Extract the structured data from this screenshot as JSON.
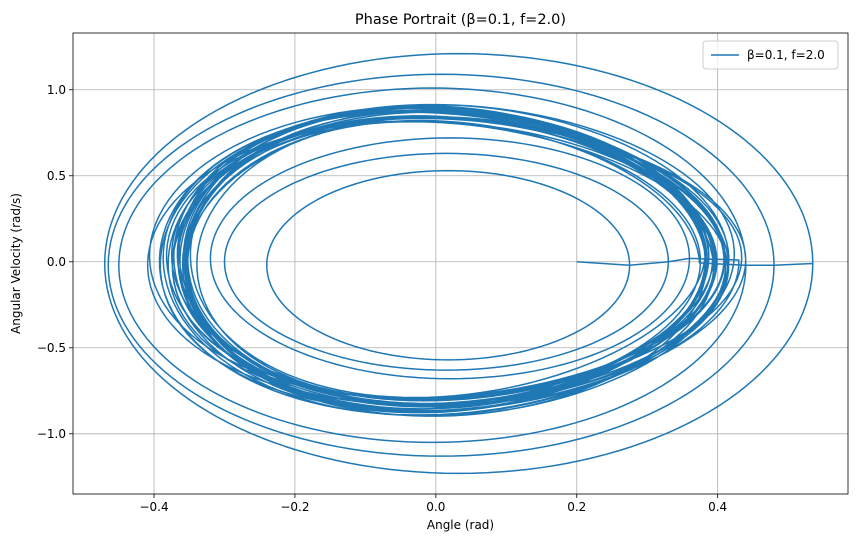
{
  "chart_data": {
    "type": "line",
    "title": "Phase Portrait (β=0.1, f=2.0)",
    "xlabel": "Angle (rad)",
    "ylabel": "Angular Velocity (rad/s)",
    "xlim": [
      -0.515,
      0.585
    ],
    "ylim": [
      -1.35,
      1.33
    ],
    "xticks": [
      -0.4,
      -0.2,
      0.0,
      0.2,
      0.4
    ],
    "xtick_labels": [
      "−0.4",
      "−0.2",
      "0.0",
      "0.2",
      "0.4"
    ],
    "yticks": [
      -1.0,
      -0.5,
      0.0,
      0.5,
      1.0
    ],
    "ytick_labels": [
      "−1.0",
      "−0.5",
      "0.0",
      "0.5",
      "1.0"
    ],
    "grid": true,
    "legend_position": "top-right",
    "color": "#1f77b4",
    "series": [
      {
        "name": "β=0.1, f=2.0",
        "start": [
          0.2,
          0.0
        ],
        "initial_loops": [
          {
            "center": [
              0.0,
              -0.03
            ],
            "x_extent": [
              -0.24,
              0.275
            ],
            "y_extent": [
              -0.57,
              0.53
            ]
          },
          {
            "center": [
              0.02,
              -0.02
            ],
            "x_extent": [
              -0.3,
              0.33
            ],
            "y_extent": [
              -0.63,
              0.63
            ]
          },
          {
            "center": [
              0.02,
              -0.01
            ],
            "x_extent": [
              -0.32,
              0.36
            ],
            "y_extent": [
              -0.68,
              0.72
            ]
          }
        ],
        "attractor": {
          "center": [
            0.015,
            0.04
          ],
          "x_amplitude": 0.385,
          "y_amplitude": 0.85
        },
        "outer_loops": [
          {
            "center": [
              0.035,
              -0.01
            ],
            "x_extent": [
              -0.45,
              0.44
            ],
            "y_extent": [
              -1.05,
              1.01
            ]
          },
          {
            "center": [
              0.05,
              -0.01
            ],
            "x_extent": [
              -0.465,
              0.48
            ],
            "y_extent": [
              -1.13,
              1.09
            ]
          },
          {
            "center": [
              0.06,
              -0.01
            ],
            "x_extent": [
              -0.47,
              0.535
            ],
            "y_extent": [
              -1.23,
              1.21
            ]
          }
        ]
      }
    ]
  }
}
